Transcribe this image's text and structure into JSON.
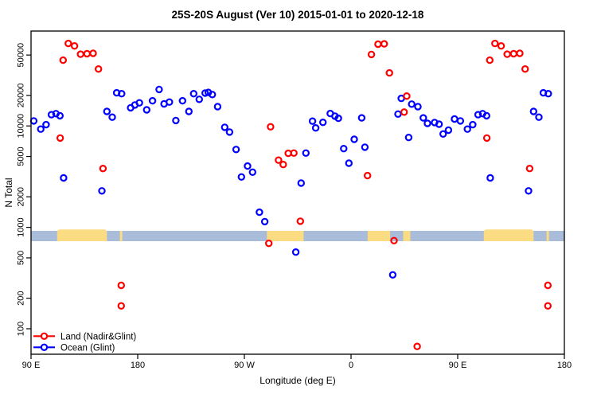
{
  "title": "25S-20S August (Ver 10)   2015-01-01 to 2020-12-18",
  "legend": {
    "items": [
      {
        "label": "Land (Nadir&Glint)",
        "color": "#FF0000"
      },
      {
        "label": "Ocean (Glint)",
        "color": "#0000FF"
      }
    ],
    "position": "bottom-left"
  },
  "colors": {
    "land_marker": "#FF0000",
    "ocean_marker": "#0000FF",
    "map_ocean": "#A9BCD9",
    "map_land": "#FCDC82",
    "frame": "#000000",
    "background": "#FFFFFF"
  },
  "chart_data": {
    "type": "scatter",
    "title": "25S-20S August (Ver 10)   2015-01-01 to 2020-12-18",
    "xlabel": "Longitude (deg E)",
    "ylabel": "N Total",
    "x_axis": {
      "note": "longitude unwrapped eastward starting at 90E; 270=90W, 360=0, 450=90E, 540=180",
      "range": [
        90,
        540
      ],
      "ticks": [
        {
          "pos": 90,
          "label": "90 E"
        },
        {
          "pos": 180,
          "label": "180"
        },
        {
          "pos": 270,
          "label": "90 W"
        },
        {
          "pos": 360,
          "label": "0"
        },
        {
          "pos": 450,
          "label": "90 E"
        },
        {
          "pos": 540,
          "label": "180"
        }
      ]
    },
    "y_axis": {
      "scale": "log",
      "range": [
        56,
        86000
      ],
      "ticks": [
        100,
        200,
        500,
        1000,
        2000,
        5000,
        10000,
        20000,
        50000
      ],
      "tick_labels": [
        "100",
        "200",
        "500",
        "1000",
        "2000",
        "5000",
        "10000",
        "20000",
        "50000"
      ],
      "grid": false
    },
    "map_band": {
      "description": "thin world-map strip of the 25S-20S latitude belt drawn across the plot at N=1000",
      "value_center": 1000,
      "ocean_color": "#A9BCD9",
      "land_color": "#FCDC82",
      "land_segments": [
        {
          "from": 112,
          "to": 154,
          "name": "Australia",
          "bulge": true
        },
        {
          "from": 165,
          "to": 167,
          "name": "New Caledonia",
          "bulge": false
        },
        {
          "from": 289,
          "to": 320,
          "name": "South America",
          "bulge": false
        },
        {
          "from": 374,
          "to": 393,
          "name": "Africa",
          "bulge": false
        },
        {
          "from": 404,
          "to": 410,
          "name": "Madagascar",
          "bulge": false
        },
        {
          "from": 472,
          "to": 514,
          "name": "Australia",
          "bulge": true
        },
        {
          "from": 525,
          "to": 527,
          "name": "New Caledonia",
          "bulge": false
        }
      ]
    },
    "series": [
      {
        "name": "Land (Nadir&Glint)",
        "color": "#FF0000",
        "marker": "open-circle",
        "points": [
          [
            114.6,
            7600
          ],
          [
            117.1,
            44500
          ],
          [
            121.4,
            65000
          ],
          [
            126.7,
            61500
          ],
          [
            131.8,
            51000
          ],
          [
            137.2,
            51500
          ],
          [
            142.4,
            52000
          ],
          [
            146.9,
            36400
          ],
          [
            150.7,
            3800
          ],
          [
            166.1,
            268
          ],
          [
            166.1,
            168
          ],
          [
            290.6,
            695
          ],
          [
            292.1,
            9800
          ],
          [
            298.8,
            4600
          ],
          [
            302.8,
            4160
          ],
          [
            307.0,
            5370
          ],
          [
            311.8,
            5400
          ],
          [
            317.2,
            1150
          ],
          [
            373.9,
            3240
          ],
          [
            377.2,
            50700
          ],
          [
            382.8,
            64000
          ],
          [
            388.0,
            64500
          ],
          [
            392.4,
            33300
          ],
          [
            396.3,
            740
          ],
          [
            404.8,
            13700
          ],
          [
            407.0,
            19700
          ],
          [
            415.8,
            67
          ],
          [
            474.6,
            7600
          ],
          [
            477.1,
            44500
          ],
          [
            481.4,
            65000
          ],
          [
            486.7,
            61500
          ],
          [
            491.8,
            51000
          ],
          [
            497.2,
            51500
          ],
          [
            502.4,
            52000
          ],
          [
            506.9,
            36400
          ],
          [
            510.7,
            3800
          ],
          [
            526.1,
            268
          ],
          [
            526.1,
            168
          ]
        ]
      },
      {
        "name": "Ocean (Glint)",
        "color": "#0000FF",
        "marker": "open-circle",
        "points": [
          [
            92.3,
            11200
          ],
          [
            98.2,
            9300
          ],
          [
            102.7,
            10300
          ],
          [
            107.2,
            12900
          ],
          [
            111.0,
            13200
          ],
          [
            114.4,
            12600
          ],
          [
            117.5,
            3070
          ],
          [
            149.8,
            2290
          ],
          [
            154.0,
            13900
          ],
          [
            158.5,
            12200
          ],
          [
            162.3,
            21200
          ],
          [
            166.4,
            20800
          ],
          [
            174.0,
            15100
          ],
          [
            177.6,
            16100
          ],
          [
            181.4,
            16900
          ],
          [
            187.6,
            14400
          ],
          [
            192.5,
            17700
          ],
          [
            198.1,
            22900
          ],
          [
            202.2,
            16500
          ],
          [
            206.7,
            17200
          ],
          [
            212.2,
            11300
          ],
          [
            217.8,
            17700
          ],
          [
            223.2,
            13900
          ],
          [
            227.2,
            20800
          ],
          [
            231.9,
            18300
          ],
          [
            236.9,
            21100
          ],
          [
            239.6,
            21400
          ],
          [
            242.9,
            20400
          ],
          [
            247.4,
            15500
          ],
          [
            253.4,
            9700
          ],
          [
            257.5,
            8700
          ],
          [
            263.0,
            5860
          ],
          [
            267.5,
            3140
          ],
          [
            272.7,
            4020
          ],
          [
            276.9,
            3500
          ],
          [
            282.7,
            1410
          ],
          [
            287.2,
            1140
          ],
          [
            313.4,
            570
          ],
          [
            317.9,
            2730
          ],
          [
            321.9,
            5400
          ],
          [
            327.5,
            11150
          ],
          [
            330.2,
            9560
          ],
          [
            336.3,
            10850
          ],
          [
            342.5,
            13250
          ],
          [
            346.4,
            12500
          ],
          [
            349.3,
            11900
          ],
          [
            353.8,
            5970
          ],
          [
            358.2,
            4290
          ],
          [
            362.7,
            7380
          ],
          [
            369.0,
            12000
          ],
          [
            371.7,
            6170
          ],
          [
            395.2,
            340
          ],
          [
            399.6,
            13100
          ],
          [
            402.4,
            18700
          ],
          [
            408.6,
            7700
          ],
          [
            411.2,
            16400
          ],
          [
            416.4,
            15500
          ],
          [
            421.0,
            12000
          ],
          [
            424.5,
            10600
          ],
          [
            430.5,
            10800
          ],
          [
            434.3,
            10400
          ],
          [
            437.7,
            8330
          ],
          [
            442.2,
            9080
          ],
          [
            447.3,
            11700
          ],
          [
            452.3,
            11200
          ],
          [
            458.2,
            9300
          ],
          [
            462.7,
            10300
          ],
          [
            467.2,
            12900
          ],
          [
            471.0,
            13200
          ],
          [
            474.4,
            12600
          ],
          [
            477.5,
            3070
          ],
          [
            509.8,
            2290
          ],
          [
            514.0,
            13900
          ],
          [
            518.5,
            12200
          ],
          [
            522.3,
            21200
          ],
          [
            526.4,
            20800
          ]
        ]
      }
    ]
  }
}
